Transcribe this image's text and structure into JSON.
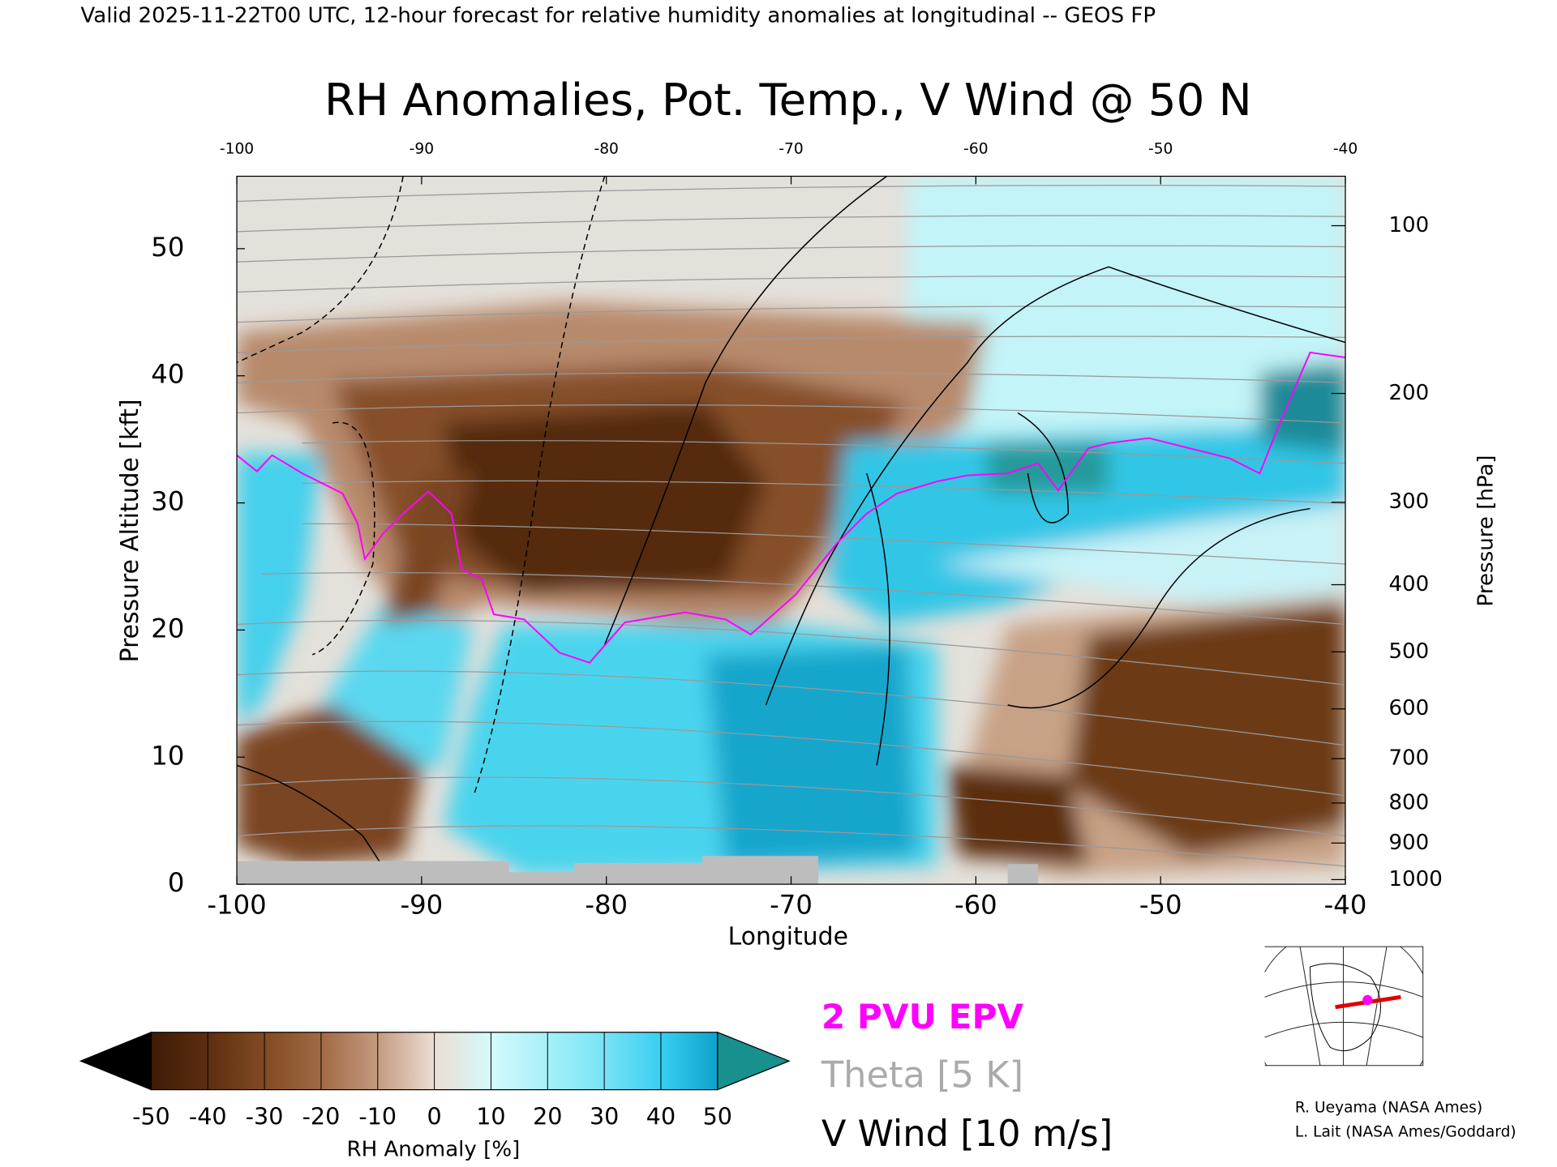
{
  "header": "Valid 2025-11-22T00 UTC, 12-hour forecast for relative humidity anomalies at longitudinal -- GEOS FP",
  "chart_data": {
    "type": "cross-section",
    "title": "RH Anomalies, Pot. Temp., V Wind @ 50 N",
    "x_label": "Longitude",
    "y_label": "Pressure Altitude [kft]",
    "y2_label": "Pressure [hPa]",
    "xlim": [
      -100,
      -40
    ],
    "xticks": [
      -100,
      -90,
      -80,
      -70,
      -60,
      -50,
      -40
    ],
    "ylim": [
      0,
      55.7
    ],
    "yticks": [
      0,
      10,
      20,
      30,
      40,
      50
    ],
    "y2_scale": "pressure-altitude",
    "y2ticks": [
      100,
      200,
      300,
      400,
      500,
      600,
      700,
      800,
      900,
      1000
    ],
    "colorbar": {
      "label": "RH Anomaly [%]",
      "ticks": [
        -50,
        -40,
        -30,
        -20,
        -10,
        0,
        10,
        20,
        30,
        40,
        50
      ],
      "colors": [
        "#3e1a06",
        "#5e2e10",
        "#824a22",
        "#a06a44",
        "#c49a80",
        "#ecded4",
        "#d4fafc",
        "#a6f0f8",
        "#78e4f6",
        "#38cef0",
        "#0ea2cc"
      ],
      "under_color": "#000000",
      "over_color": "#17908e"
    },
    "legend": [
      {
        "name": "2 PVU EPV",
        "color": "#ff00ff"
      },
      {
        "name": "Theta [5 K]",
        "color": "#aaaaaa"
      },
      {
        "name": "V Wind [10 m/s]",
        "color": "#000000"
      }
    ]
  },
  "credits": [
    "R. Ueyama (NASA Ames)",
    "L. Lait (NASA Ames/Goddard)"
  ]
}
